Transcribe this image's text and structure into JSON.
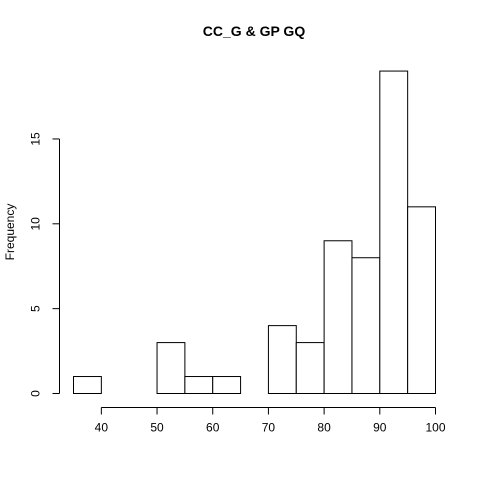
{
  "chart_data": {
    "type": "histogram",
    "title": "CC_G & GP GQ",
    "xlabel": "",
    "ylabel": "Frequency",
    "bins": [
      {
        "start": 35,
        "end": 40,
        "count": 1
      },
      {
        "start": 40,
        "end": 45,
        "count": 0
      },
      {
        "start": 45,
        "end": 50,
        "count": 0
      },
      {
        "start": 50,
        "end": 55,
        "count": 3
      },
      {
        "start": 55,
        "end": 60,
        "count": 1
      },
      {
        "start": 60,
        "end": 65,
        "count": 1
      },
      {
        "start": 65,
        "end": 70,
        "count": 0
      },
      {
        "start": 70,
        "end": 75,
        "count": 4
      },
      {
        "start": 75,
        "end": 80,
        "count": 3
      },
      {
        "start": 80,
        "end": 85,
        "count": 9
      },
      {
        "start": 85,
        "end": 90,
        "count": 8
      },
      {
        "start": 90,
        "end": 95,
        "count": 19
      },
      {
        "start": 95,
        "end": 100,
        "count": 11
      }
    ],
    "xlim": [
      35,
      100
    ],
    "ylim": [
      0,
      19
    ],
    "x_ticks": [
      40,
      50,
      60,
      70,
      80,
      90,
      100
    ],
    "y_ticks": [
      0,
      5,
      10,
      15
    ],
    "grid": false,
    "bar_fill": "#ffffff",
    "bar_stroke": "#000000"
  }
}
